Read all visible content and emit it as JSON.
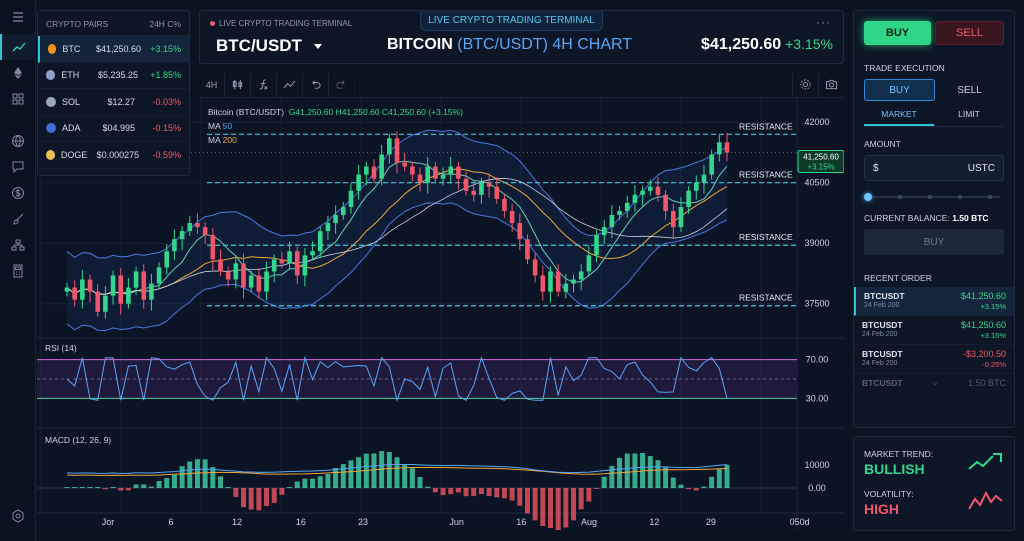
{
  "sidebar": {
    "icons": [
      "chart-line-icon",
      "ethereum-icon",
      "grid-icon",
      "globe-icon",
      "chat-icon",
      "dollar-icon",
      "brush-icon",
      "hierarchy-icon",
      "calculator-icon",
      "settings-hex-icon"
    ]
  },
  "pairs": {
    "header_left": "CRYPTO PAIRS",
    "header_right": "24H C%",
    "rows": [
      {
        "symbol": "BTC",
        "price": "$41,250.60",
        "change": "+3.15%",
        "dir": "pos",
        "color": "#f7931a"
      },
      {
        "symbol": "ETH",
        "price": "$5,235.25",
        "change": "+1.85%",
        "dir": "pos",
        "color": "#8ea2c6"
      },
      {
        "symbol": "SOL",
        "price": "$12.27",
        "change": "-0.03%",
        "dir": "neg",
        "color": "#9aa6bc"
      },
      {
        "symbol": "ADA",
        "price": "$04.995",
        "change": "-0.15%",
        "dir": "neg",
        "color": "#3b6fd6"
      },
      {
        "symbol": "DOGE",
        "price": "$0.000275",
        "change": "-0.59%",
        "dir": "neg",
        "color": "#e8c050"
      }
    ]
  },
  "header": {
    "live_small": "LIVE CRYPTO TRADING TERMINAL",
    "live_tab": "LIVE CRYPTO TRADING TERMINAL",
    "pair": "BTC/USDT",
    "title_a": "BITCOIN",
    "title_b": "(BTC/USDT) 4H CHART",
    "last_price": "$41,250.60",
    "last_change": "+3.15%",
    "more": "···"
  },
  "toolbar": {
    "interval": "4H",
    "tools": [
      "candles-icon",
      "formula-icon",
      "indicator-line-icon",
      "undo-icon",
      "redo-icon"
    ],
    "right_tools": [
      "settings-icon",
      "camera-icon"
    ]
  },
  "legend": {
    "name": "Bitcoin (BTC/USDT)",
    "ohlc": "G41,250.60  H41,250.60  C41,250.60 (+3.15%)",
    "ma50_label": "MA",
    "ma50_value": "50",
    "ma200_label": "MA",
    "ma200_value": "200"
  },
  "price_levels": [
    {
      "label": "RESISTANCE",
      "price": 41700
    },
    {
      "label": "RESISTANCE",
      "price": 40500
    },
    {
      "label": "RESISTANCE",
      "price": 38950
    },
    {
      "label": "RESISTANCE",
      "price": 37450
    }
  ],
  "chart_data": {
    "type": "candlestick",
    "title": "BITCOIN (BTC/USDT) 4H CHART",
    "y_ticks": [
      "42000",
      "40500",
      "39000",
      "37500"
    ],
    "y_tick_values": [
      42000,
      40500,
      39000,
      37500
    ],
    "ylim": [
      36700,
      42550
    ],
    "x_ticks": [
      "Jor",
      "6",
      "12",
      "16",
      "23",
      "Jun",
      "16",
      "Aug",
      "12",
      "29",
      "050d"
    ],
    "x_tick_positions": [
      0.088,
      0.166,
      0.248,
      0.327,
      0.404,
      0.52,
      0.6,
      0.684,
      0.765,
      0.835,
      0.945
    ],
    "last_price_label": "41,250.60",
    "last_price_change": "+3.15%",
    "last_price": 41250,
    "close_series": [
      37900,
      37600,
      38100,
      37800,
      37300,
      37700,
      38200,
      37500,
      37900,
      38300,
      37600,
      38000,
      38400,
      38800,
      39100,
      39300,
      39500,
      39400,
      39200,
      38600,
      38300,
      38100,
      38500,
      37900,
      38200,
      37800,
      38300,
      38600,
      38500,
      38800,
      38200,
      38700,
      38800,
      39300,
      39500,
      39700,
      39900,
      40300,
      40700,
      40900,
      40600,
      41200,
      41600,
      41000,
      40900,
      40700,
      40500,
      40900,
      40600,
      40700,
      40900,
      40600,
      40300,
      40200,
      40500,
      40400,
      40100,
      39800,
      39500,
      39100,
      38600,
      38200,
      37800,
      38300,
      37800,
      38000,
      38100,
      38300,
      38700,
      39200,
      39400,
      39700,
      39800,
      40000,
      40200,
      40300,
      40400,
      40200,
      39800,
      39400,
      39900,
      40300,
      40500,
      40700,
      41200,
      41500,
      41250
    ],
    "rsi": {
      "label": "RSI (14)",
      "levels": [
        "70.00",
        "30.00"
      ],
      "level_values": [
        70,
        30
      ]
    },
    "macd": {
      "label": "MACD (12, 26, 9)",
      "levels": [
        "10000",
        "0.00"
      ]
    }
  },
  "trade": {
    "buy_top": "BUY",
    "sell_top": "SELL",
    "section": "TRADE EXECUTION",
    "seg_buy": "BUY",
    "seg_sell": "SELL",
    "tab_market": "MARKET",
    "tab_limit": "LIMIT",
    "amount_label": "AMOUNT",
    "amount_currency": "$",
    "amount_unit": "USTC",
    "slider_value": 0,
    "balance_label": "CURRENT BALANCE:",
    "balance_value": "1.50 BTC",
    "buy_button": "BUY",
    "recent_label": "RECENT ORDER",
    "orders": [
      {
        "pair": "BTCUSDT",
        "date": "24 Feb 200",
        "value": "$41,250.60",
        "change": "+3.15%",
        "dir": "pos"
      },
      {
        "pair": "BTCUSDT",
        "date": "24 Feb 200",
        "value": "$41,250.60",
        "change": "+3.15%",
        "dir": "pos"
      },
      {
        "pair": "BTCUSDT",
        "date": "24 Feb 200",
        "value": "-$3,200.50",
        "change": "-0.25%",
        "dir": "neg"
      }
    ],
    "faded_order": {
      "pair": "BTCUSDT",
      "value": "1.50 BTC"
    }
  },
  "market": {
    "trend_label": "MARKET TREND:",
    "trend_value": "BULLISH",
    "vol_label": "VOLATILITY:",
    "vol_value": "HIGH"
  },
  "colors": {
    "up": "#33d68c",
    "down": "#f0566a",
    "accent": "#2fc4d8",
    "ma50": "#56a7f5",
    "ma200": "#f0a63c"
  }
}
